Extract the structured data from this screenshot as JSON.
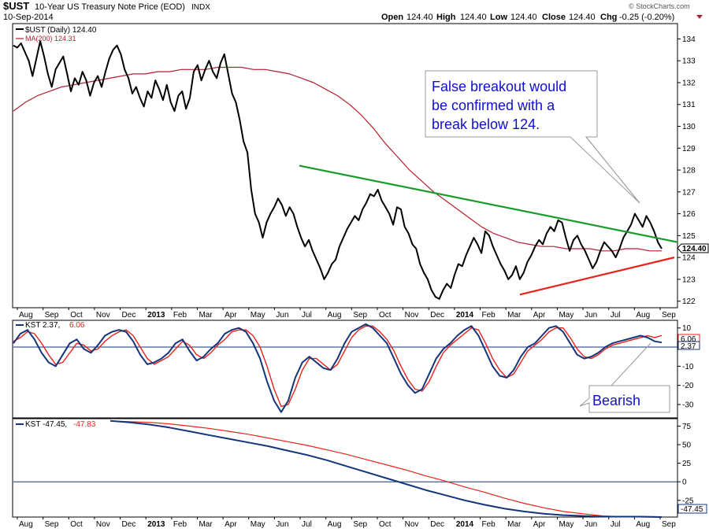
{
  "header": {
    "symbol": "$UST",
    "description": "10-Year US Treasury Note Price (EOD)",
    "exchange": "INDX",
    "date": "10-Sep-2014",
    "open_label": "Open",
    "open": "124.40",
    "high_label": "High",
    "high": "124.40",
    "low_label": "Low",
    "low": "124.40",
    "close_label": "Close",
    "close": "124.40",
    "chg_label": "Chg",
    "chg": "-0.25 (-0.20%)",
    "brand": "© StockCharts.com"
  },
  "colors": {
    "price": "#000000",
    "ma": "#b0202e",
    "kst": "#14357a",
    "signal": "#e8231a",
    "resistance": "#1a9a2a",
    "support": "#e8231a",
    "annotation_text": "#1010cc"
  },
  "panels": {
    "price": {
      "legend_line1": "$UST (Daily) 124.40",
      "legend_line2": "MA(200) 124.31",
      "last_value_label": "124.40"
    },
    "kst_short": {
      "legend_kst": "KST 2.37,",
      "legend_signal": "6.06",
      "last_kst_label": "2.37",
      "last_signal_label": "6.06"
    },
    "kst_long": {
      "legend_kst": "KST -47.45,",
      "legend_signal": "-47.83",
      "last_label": "-47.45"
    }
  },
  "annotations": {
    "breakout": [
      "False breakout would",
      "be confirmed with a",
      "break below 124."
    ],
    "bearish": "Bearish"
  },
  "x_axis": {
    "months": [
      {
        "label": "Aug",
        "bold": false
      },
      {
        "label": "Sep",
        "bold": false
      },
      {
        "label": "Oct",
        "bold": false
      },
      {
        "label": "Nov",
        "bold": false
      },
      {
        "label": "Dec",
        "bold": false
      },
      {
        "label": "2013",
        "bold": true
      },
      {
        "label": "Feb",
        "bold": false
      },
      {
        "label": "Mar",
        "bold": false
      },
      {
        "label": "Apr",
        "bold": false
      },
      {
        "label": "May",
        "bold": false
      },
      {
        "label": "Jun",
        "bold": false
      },
      {
        "label": "Jul",
        "bold": false
      },
      {
        "label": "Aug",
        "bold": false
      },
      {
        "label": "Sep",
        "bold": false
      },
      {
        "label": "Oct",
        "bold": false
      },
      {
        "label": "Nov",
        "bold": false
      },
      {
        "label": "Dec",
        "bold": false
      },
      {
        "label": "2014",
        "bold": true
      },
      {
        "label": "Feb",
        "bold": false
      },
      {
        "label": "Mar",
        "bold": false
      },
      {
        "label": "Apr",
        "bold": false
      },
      {
        "label": "May",
        "bold": false
      },
      {
        "label": "Jun",
        "bold": false
      },
      {
        "label": "Jul",
        "bold": false
      },
      {
        "label": "Aug",
        "bold": false
      },
      {
        "label": "Sep",
        "bold": false
      }
    ]
  },
  "chart_data": [
    {
      "type": "line",
      "name": "price",
      "ylim": [
        121.7,
        134.7
      ],
      "y_ticks": [
        122,
        123,
        124,
        125,
        126,
        127,
        128,
        129,
        130,
        131,
        132,
        133,
        134
      ],
      "grid": false,
      "series": [
        {
          "name": "$UST (Daily)",
          "values": [
            133.7,
            133.6,
            133.8,
            133.4,
            133.0,
            132.3,
            133.1,
            133.9,
            133.2,
            132.4,
            131.8,
            132.6,
            132.9,
            133.2,
            132.4,
            131.6,
            132.2,
            131.9,
            132.5,
            132.1,
            131.4,
            132.0,
            132.3,
            131.8,
            132.5,
            133.1,
            133.5,
            133.7,
            133.3,
            132.6,
            132.2,
            131.5,
            131.8,
            131.3,
            130.9,
            131.6,
            131.3,
            132.1,
            131.7,
            131.2,
            131.9,
            131.1,
            130.7,
            131.4,
            131.6,
            130.8,
            131.3,
            132.5,
            132.8,
            132.1,
            132.6,
            133.0,
            132.5,
            132.2,
            132.9,
            133.3,
            132.4,
            131.5,
            131.1,
            130.3,
            129.3,
            128.8,
            127.1,
            126.0,
            125.6,
            124.9,
            125.6,
            126.0,
            126.3,
            126.7,
            126.4,
            125.9,
            126.3,
            126.0,
            125.4,
            124.9,
            124.5,
            124.8,
            124.3,
            123.9,
            123.5,
            123.0,
            123.3,
            123.7,
            123.9,
            124.5,
            124.9,
            125.3,
            125.6,
            125.9,
            125.7,
            126.2,
            126.5,
            126.9,
            126.8,
            127.1,
            126.6,
            126.3,
            126.0,
            125.5,
            126.3,
            126.2,
            125.4,
            125.1,
            124.6,
            124.4,
            123.7,
            123.3,
            123.0,
            122.5,
            122.2,
            122.1,
            122.5,
            122.8,
            122.6,
            123.2,
            123.7,
            123.6,
            124.1,
            124.5,
            124.9,
            124.6,
            124.2,
            125.2,
            125.0,
            124.5,
            124.1,
            123.7,
            123.4,
            123.0,
            123.2,
            123.6,
            123.0,
            123.3,
            123.8,
            124.1,
            124.5,
            124.8,
            124.6,
            125.1,
            125.4,
            125.2,
            125.7,
            125.6,
            124.9,
            124.3,
            124.8,
            125.0,
            124.6,
            124.3,
            123.9,
            123.5,
            123.8,
            124.3,
            124.7,
            124.5,
            124.3,
            124.0,
            124.4,
            124.9,
            125.2,
            125.5,
            126.0,
            125.7,
            125.4,
            125.9,
            125.6,
            125.2,
            124.7,
            124.4
          ]
        },
        {
          "name": "MA(200)",
          "values": [
            130.7,
            131.1,
            131.4,
            131.6,
            131.8,
            131.9,
            132.0,
            132.1,
            132.2,
            132.3,
            132.4,
            132.4,
            132.5,
            132.5,
            132.6,
            132.6,
            132.6,
            132.7,
            132.7,
            132.7,
            132.6,
            132.6,
            132.5,
            132.4,
            132.2,
            132.0,
            131.7,
            131.4,
            131.0,
            130.5,
            129.9,
            129.2,
            128.6,
            128.0,
            127.5,
            127.0,
            126.6,
            126.2,
            125.8,
            125.4,
            125.1,
            124.9,
            124.7,
            124.6,
            124.5,
            124.5,
            124.4,
            124.4,
            124.4,
            124.3,
            124.3,
            124.4,
            124.4,
            124.3,
            124.3
          ]
        }
      ],
      "support_line": [
        [
          0.0,
          122.3
        ],
        [
          1.0,
          124.0
        ]
      ],
      "resistance_line": [
        [
          0.0,
          128.2
        ],
        [
          1.0,
          124.7
        ]
      ]
    },
    {
      "type": "line",
      "name": "kst_short",
      "ylim": [
        -37,
        14
      ],
      "y_ticks": [
        10,
        0,
        -10,
        -20,
        -30
      ],
      "hline": 0,
      "series": [
        {
          "name": "KST",
          "values": [
            2,
            7,
            9,
            4,
            -3,
            -8,
            -10,
            -4,
            2,
            4,
            -1,
            -3,
            1,
            6,
            8,
            9,
            8,
            3,
            -4,
            -9,
            -8,
            -6,
            -3,
            2,
            4,
            -2,
            -7,
            -5,
            -1,
            2,
            7,
            9,
            10,
            8,
            2,
            -6,
            -18,
            -28,
            -34,
            -28,
            -16,
            -8,
            -5,
            -8,
            -11,
            -12,
            -6,
            2,
            8,
            10,
            12,
            10,
            6,
            2,
            -6,
            -14,
            -20,
            -24,
            -22,
            -14,
            -6,
            -1,
            2,
            6,
            9,
            11,
            6,
            -2,
            -10,
            -15,
            -16,
            -12,
            -5,
            0,
            2,
            6,
            10,
            11,
            8,
            2,
            -4,
            -6,
            -5,
            -3,
            0,
            2,
            3,
            4,
            5,
            6,
            5,
            3,
            2.4
          ]
        },
        {
          "name": "Signal",
          "values": [
            3,
            5,
            8,
            7,
            2,
            -4,
            -9,
            -8,
            -3,
            2,
            1,
            -2,
            -1,
            3,
            6,
            8,
            9,
            6,
            0,
            -6,
            -9,
            -7,
            -5,
            -1,
            3,
            1,
            -4,
            -6,
            -3,
            1,
            4,
            8,
            9,
            9,
            6,
            0,
            -10,
            -22,
            -31,
            -30,
            -22,
            -12,
            -6,
            -6,
            -9,
            -12,
            -9,
            -2,
            5,
            9,
            11,
            11,
            8,
            4,
            -2,
            -10,
            -17,
            -22,
            -23,
            -18,
            -10,
            -3,
            1,
            4,
            7,
            10,
            9,
            2,
            -6,
            -12,
            -16,
            -14,
            -8,
            -2,
            1,
            4,
            8,
            10,
            10,
            5,
            -1,
            -5,
            -6,
            -4,
            -1,
            1,
            2,
            3,
            4,
            5,
            6,
            5,
            6.06
          ]
        }
      ]
    },
    {
      "type": "line",
      "name": "kst_long",
      "ylim": [
        -47.5,
        85
      ],
      "y_ticks": [
        75,
        50,
        25,
        0,
        -25
      ],
      "hline": 0,
      "series": [
        {
          "name": "KST",
          "values": [
            82,
            80,
            77,
            73,
            68,
            63,
            58,
            53,
            48,
            42,
            36,
            29,
            21,
            13,
            5,
            -3,
            -11,
            -18,
            -25,
            -31,
            -36,
            -40,
            -43,
            -45,
            -46,
            -47,
            -47,
            -47,
            -47.45
          ]
        },
        {
          "name": "Signal",
          "values": [
            82,
            81,
            80,
            78,
            75,
            72,
            68,
            64,
            59,
            54,
            49,
            43,
            37,
            30,
            23,
            16,
            8,
            1,
            -7,
            -14,
            -22,
            -29,
            -35,
            -40,
            -43,
            -46,
            -47,
            -47.5,
            -47.83
          ]
        }
      ]
    }
  ]
}
